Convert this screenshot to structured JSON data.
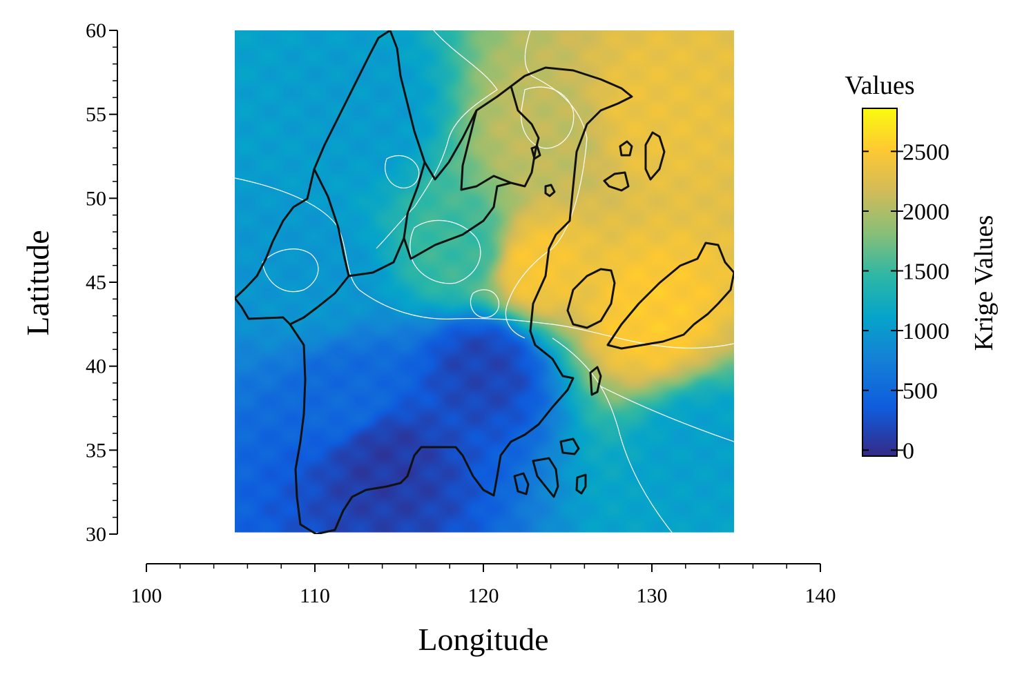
{
  "chart_data": {
    "type": "heatmap",
    "subtype": "kriging interpolation map with contours and region outlines",
    "xlabel": "Longitude",
    "ylabel": "Latitude",
    "xlim": [
      100,
      140
    ],
    "ylim": [
      30,
      60
    ],
    "x_ticks": [
      100,
      110,
      120,
      130,
      140
    ],
    "y_ticks": [
      30,
      35,
      40,
      45,
      50,
      55,
      60
    ],
    "data_extent": {
      "lon": [
        105.2,
        134.9
      ],
      "lat": [
        30.1,
        60.0
      ]
    },
    "colorbar": {
      "title": "Values",
      "label": "Krige Values",
      "ticks": [
        0,
        500,
        1000,
        1500,
        2000,
        2500
      ],
      "range": [
        -50,
        2860
      ],
      "colors": [
        "#352a87",
        "#0f5cdd",
        "#1481d6",
        "#06a4ca",
        "#2eb7a4",
        "#87bf77",
        "#d1bb59",
        "#fec832",
        "#f9fb0e"
      ]
    },
    "field_samples": [
      {
        "lon": 114,
        "lat": 34.5,
        "value": 80
      },
      {
        "lon": 120,
        "lat": 40,
        "value": 150
      },
      {
        "lon": 112,
        "lat": 38,
        "value": 450
      },
      {
        "lon": 110,
        "lat": 45,
        "value": 900
      },
      {
        "lon": 113,
        "lat": 55,
        "value": 950
      },
      {
        "lon": 119,
        "lat": 47,
        "value": 1450
      },
      {
        "lon": 124,
        "lat": 54,
        "value": 2050
      },
      {
        "lon": 123,
        "lat": 46,
        "value": 2450
      },
      {
        "lon": 130,
        "lat": 43,
        "value": 2500
      },
      {
        "lon": 130,
        "lat": 55,
        "value": 2350
      },
      {
        "lon": 133,
        "lat": 35,
        "value": 1000
      }
    ],
    "contour_line_color": "#ffffff",
    "outline_color": "#111111"
  }
}
